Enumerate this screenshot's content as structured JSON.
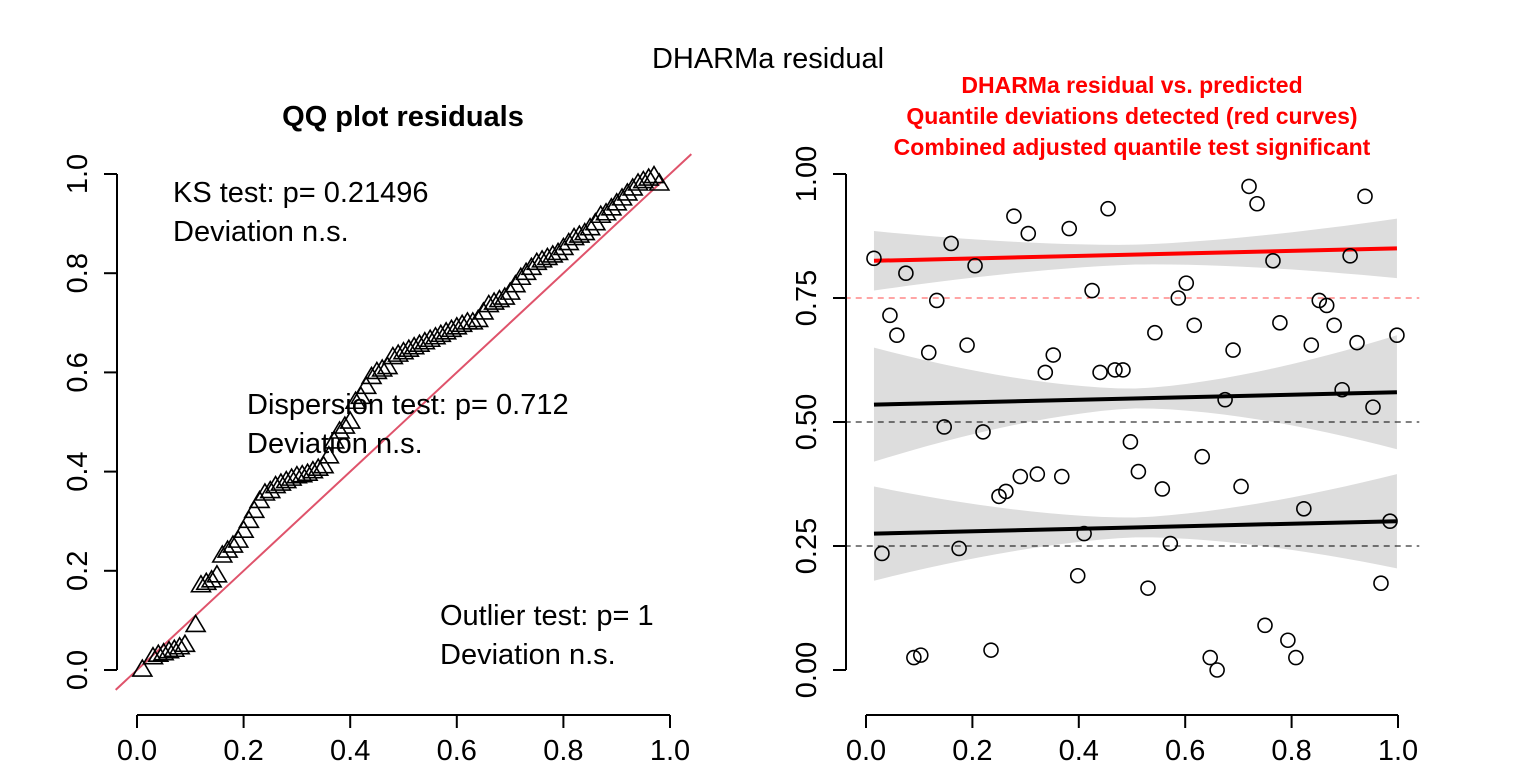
{
  "figure": {
    "title": "DHARMa residual"
  },
  "chart_data": [
    {
      "type": "scatter",
      "title": "QQ plot residuals",
      "xlabel": "",
      "ylabel": "",
      "xlim": [
        -0.04,
        1.04
      ],
      "ylim": [
        -0.04,
        1.04
      ],
      "xticks": [
        "0.0",
        "0.2",
        "0.4",
        "0.6",
        "0.8",
        "1.0"
      ],
      "yticks": [
        "0.0",
        "0.2",
        "0.4",
        "0.6",
        "0.8",
        "1.0"
      ],
      "xtick_values": [
        0,
        0.2,
        0.4,
        0.6,
        0.8,
        1.0
      ],
      "ytick_values": [
        0,
        0.2,
        0.4,
        0.6,
        0.8,
        1.0
      ],
      "marker": "triangle",
      "reference_line_color": "#df536b",
      "annotations": {
        "ks": [
          "KS test: p= 0.21496",
          "Deviation  n.s."
        ],
        "dispersion": [
          "Dispersion test: p= 0.712",
          "Deviation  n.s."
        ],
        "outlier": [
          "Outlier test: p= 1",
          "Deviation  n.s."
        ]
      },
      "x": [
        0.01,
        0.03,
        0.04,
        0.05,
        0.06,
        0.07,
        0.08,
        0.09,
        0.11,
        0.12,
        0.13,
        0.14,
        0.15,
        0.16,
        0.17,
        0.18,
        0.19,
        0.2,
        0.21,
        0.22,
        0.23,
        0.24,
        0.25,
        0.26,
        0.27,
        0.28,
        0.29,
        0.3,
        0.31,
        0.32,
        0.33,
        0.34,
        0.35,
        0.36,
        0.37,
        0.38,
        0.39,
        0.4,
        0.41,
        0.42,
        0.43,
        0.44,
        0.45,
        0.46,
        0.47,
        0.48,
        0.49,
        0.5,
        0.51,
        0.52,
        0.53,
        0.54,
        0.55,
        0.56,
        0.57,
        0.58,
        0.59,
        0.6,
        0.61,
        0.62,
        0.63,
        0.64,
        0.65,
        0.66,
        0.67,
        0.68,
        0.69,
        0.7,
        0.71,
        0.72,
        0.73,
        0.74,
        0.75,
        0.76,
        0.77,
        0.78,
        0.79,
        0.8,
        0.81,
        0.82,
        0.83,
        0.84,
        0.85,
        0.86,
        0.87,
        0.88,
        0.89,
        0.9,
        0.91,
        0.92,
        0.93,
        0.94,
        0.95,
        0.96,
        0.97,
        0.98
      ],
      "y": [
        0.0,
        0.025,
        0.03,
        0.033,
        0.037,
        0.04,
        0.045,
        0.05,
        0.09,
        0.17,
        0.175,
        0.18,
        0.19,
        0.23,
        0.24,
        0.25,
        0.26,
        0.28,
        0.3,
        0.32,
        0.34,
        0.355,
        0.36,
        0.37,
        0.375,
        0.38,
        0.385,
        0.39,
        0.392,
        0.395,
        0.4,
        0.405,
        0.41,
        0.43,
        0.46,
        0.48,
        0.49,
        0.5,
        0.54,
        0.55,
        0.57,
        0.59,
        0.6,
        0.605,
        0.61,
        0.63,
        0.635,
        0.64,
        0.645,
        0.65,
        0.655,
        0.66,
        0.665,
        0.67,
        0.675,
        0.68,
        0.685,
        0.69,
        0.695,
        0.7,
        0.7,
        0.705,
        0.72,
        0.735,
        0.74,
        0.745,
        0.75,
        0.76,
        0.775,
        0.79,
        0.8,
        0.81,
        0.82,
        0.825,
        0.83,
        0.835,
        0.84,
        0.85,
        0.86,
        0.87,
        0.875,
        0.88,
        0.89,
        0.9,
        0.915,
        0.92,
        0.93,
        0.94,
        0.95,
        0.96,
        0.97,
        0.98,
        0.985,
        0.99,
        0.995,
        0.98
      ]
    },
    {
      "type": "scatter",
      "title_lines": [
        "DHARMa residual vs. predicted",
        "Quantile deviations detected (red curves)",
        "Combined adjusted quantile test significant"
      ],
      "title_color": "#ff0000",
      "xlabel": "",
      "ylabel": "",
      "xlim": [
        -0.04,
        1.04
      ],
      "ylim": [
        -0.04,
        1.04
      ],
      "xticks": [
        "0.0",
        "0.2",
        "0.4",
        "0.6",
        "0.8",
        "1.0"
      ],
      "yticks": [
        "0.00",
        "0.25",
        "0.50",
        "0.75",
        "1.00"
      ],
      "xtick_values": [
        0,
        0.2,
        0.4,
        0.6,
        0.8,
        1.0
      ],
      "ytick_values": [
        0,
        0.25,
        0.5,
        0.75,
        1.0
      ],
      "marker": "circle",
      "reference_levels": [
        0.25,
        0.5,
        0.75
      ],
      "reference_colors": [
        "#000000",
        "#000000",
        "#ff0000"
      ],
      "band_color": "#dddddd",
      "quantile_lines": [
        {
          "y0": 0.275,
          "y1": 0.3,
          "color": "#000000",
          "band_inner": 0.02,
          "band_outer": 0.095
        },
        {
          "y0": 0.535,
          "y1": 0.56,
          "color": "#000000",
          "band_inner": 0.02,
          "band_outer": 0.115
        },
        {
          "y0": 0.825,
          "y1": 0.85,
          "color": "#ff0000",
          "band_inner": 0.02,
          "band_outer": 0.06
        }
      ],
      "points": [
        [
          0.015,
          0.83
        ],
        [
          0.03,
          0.235
        ],
        [
          0.045,
          0.715
        ],
        [
          0.058,
          0.675
        ],
        [
          0.075,
          0.8
        ],
        [
          0.09,
          0.025
        ],
        [
          0.103,
          0.03
        ],
        [
          0.118,
          0.64
        ],
        [
          0.133,
          0.745
        ],
        [
          0.147,
          0.49
        ],
        [
          0.16,
          0.86
        ],
        [
          0.175,
          0.245
        ],
        [
          0.19,
          0.655
        ],
        [
          0.205,
          0.815
        ],
        [
          0.22,
          0.48
        ],
        [
          0.235,
          0.04
        ],
        [
          0.25,
          0.35
        ],
        [
          0.263,
          0.36
        ],
        [
          0.278,
          0.915
        ],
        [
          0.29,
          0.39
        ],
        [
          0.305,
          0.88
        ],
        [
          0.322,
          0.395
        ],
        [
          0.337,
          0.6
        ],
        [
          0.352,
          0.635
        ],
        [
          0.368,
          0.39
        ],
        [
          0.382,
          0.89
        ],
        [
          0.398,
          0.19
        ],
        [
          0.41,
          0.275
        ],
        [
          0.425,
          0.765
        ],
        [
          0.44,
          0.6
        ],
        [
          0.455,
          0.93
        ],
        [
          0.468,
          0.605
        ],
        [
          0.483,
          0.605
        ],
        [
          0.497,
          0.46
        ],
        [
          0.512,
          0.4
        ],
        [
          0.53,
          0.165
        ],
        [
          0.543,
          0.68
        ],
        [
          0.557,
          0.365
        ],
        [
          0.572,
          0.255
        ],
        [
          0.587,
          0.75
        ],
        [
          0.602,
          0.78
        ],
        [
          0.617,
          0.695
        ],
        [
          0.632,
          0.43
        ],
        [
          0.647,
          0.025
        ],
        [
          0.66,
          0.0
        ],
        [
          0.675,
          0.545
        ],
        [
          0.69,
          0.645
        ],
        [
          0.705,
          0.37
        ],
        [
          0.72,
          0.975
        ],
        [
          0.735,
          0.94
        ],
        [
          0.75,
          0.09
        ],
        [
          0.765,
          0.825
        ],
        [
          0.778,
          0.7
        ],
        [
          0.793,
          0.06
        ],
        [
          0.808,
          0.025
        ],
        [
          0.823,
          0.325
        ],
        [
          0.837,
          0.655
        ],
        [
          0.852,
          0.745
        ],
        [
          0.866,
          0.735
        ],
        [
          0.88,
          0.695
        ],
        [
          0.895,
          0.565
        ],
        [
          0.91,
          0.835
        ],
        [
          0.923,
          0.66
        ],
        [
          0.938,
          0.955
        ],
        [
          0.953,
          0.53
        ],
        [
          0.968,
          0.175
        ],
        [
          0.985,
          0.3
        ],
        [
          0.998,
          0.675
        ]
      ]
    }
  ]
}
